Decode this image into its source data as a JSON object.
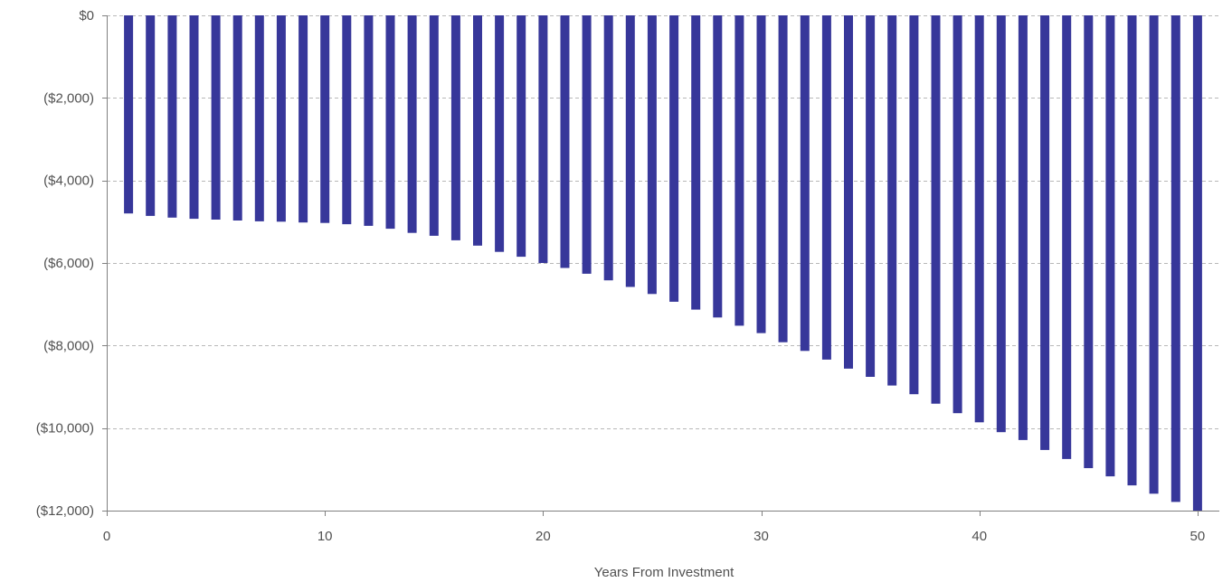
{
  "chart_data": {
    "type": "bar",
    "xlabel": "Years From Investment",
    "ylabel": "",
    "x": [
      1,
      2,
      3,
      4,
      5,
      6,
      7,
      8,
      9,
      10,
      11,
      12,
      13,
      14,
      15,
      16,
      17,
      18,
      19,
      20,
      21,
      22,
      23,
      24,
      25,
      26,
      27,
      28,
      29,
      30,
      31,
      32,
      33,
      34,
      35,
      36,
      37,
      38,
      39,
      40,
      41,
      42,
      43,
      44,
      45,
      46,
      47,
      48,
      49,
      50
    ],
    "values": [
      -4800,
      -4860,
      -4900,
      -4930,
      -4950,
      -4970,
      -4990,
      -5000,
      -5020,
      -5030,
      -5060,
      -5100,
      -5170,
      -5270,
      -5340,
      -5450,
      -5580,
      -5730,
      -5850,
      -6000,
      -6120,
      -6260,
      -6420,
      -6580,
      -6750,
      -6940,
      -7130,
      -7320,
      -7520,
      -7700,
      -7920,
      -8130,
      -8340,
      -8560,
      -8760,
      -8970,
      -9180,
      -9410,
      -9640,
      -9860,
      -10100,
      -10290,
      -10530,
      -10750,
      -10970,
      -11170,
      -11390,
      -11590,
      -11790,
      -12000
    ],
    "ylim": [
      -12000,
      0
    ],
    "xlim": [
      0,
      51
    ],
    "yticks": [
      0,
      -2000,
      -4000,
      -6000,
      -8000,
      -10000,
      -12000
    ],
    "ytick_labels": [
      "$0",
      "($2,000)",
      "($4,000)",
      "($6,000)",
      "($8,000)",
      "($10,000)",
      "($12,000)"
    ],
    "xticks": [
      0,
      10,
      20,
      30,
      40,
      50
    ],
    "xtick_labels": [
      "0",
      "10",
      "20",
      "30",
      "40",
      "50"
    ],
    "grid": true,
    "bar_color": "#37379a",
    "grid_color": "#b8b8b8",
    "axis_color": "#808080"
  }
}
